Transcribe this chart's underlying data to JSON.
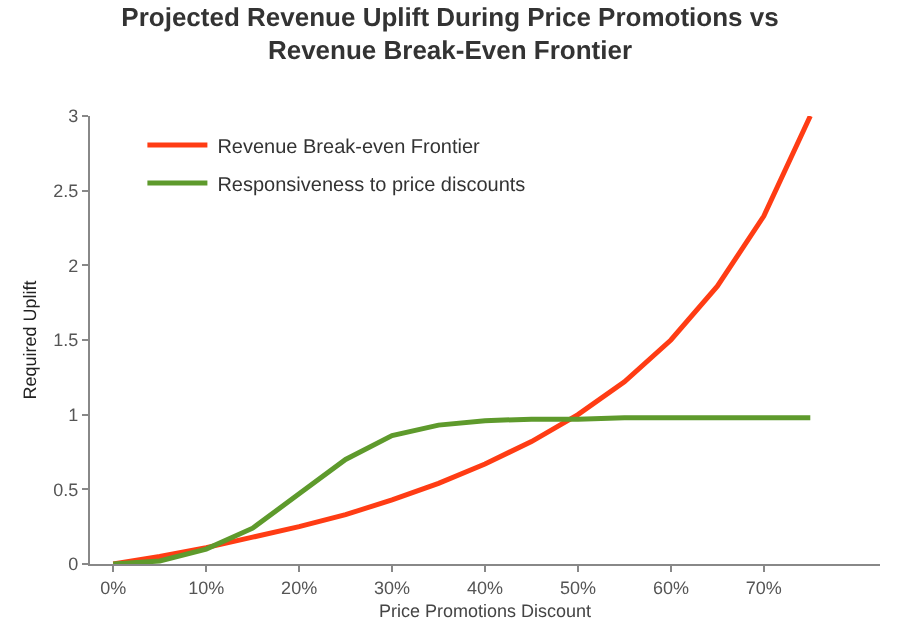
{
  "chart_data": {
    "type": "line",
    "title": "Projected Revenue Uplift During Price Promotions vs Revenue Break-Even Frontier",
    "xlabel": "Price Promotions Discount",
    "ylabel": "Required Uplift",
    "x": [
      0,
      5,
      10,
      15,
      20,
      25,
      30,
      35,
      40,
      45,
      50,
      55,
      60,
      65,
      70,
      75
    ],
    "series": [
      {
        "name": "Revenue Break-even Frontier",
        "color": "#ff3c14",
        "values": [
          0,
          0.05,
          0.11,
          0.18,
          0.25,
          0.33,
          0.43,
          0.54,
          0.67,
          0.82,
          1,
          1.22,
          1.5,
          1.86,
          2.33,
          3
        ]
      },
      {
        "name": "Responsiveness to price discounts",
        "color": "#5e9a2c",
        "values": [
          0,
          0.02,
          0.1,
          0.24,
          0.47,
          0.7,
          0.86,
          0.93,
          0.96,
          0.97,
          0.97,
          0.98,
          0.98,
          0.98,
          0.98,
          0.98
        ]
      }
    ],
    "xlim": [
      -2.5,
      82.5
    ],
    "xticks": [
      {
        "value": 0,
        "label": "0%"
      },
      {
        "value": 10,
        "label": "10%"
      },
      {
        "value": 20,
        "label": "20%"
      },
      {
        "value": 30,
        "label": "30%"
      },
      {
        "value": 40,
        "label": "40%"
      },
      {
        "value": 50,
        "label": "50%"
      },
      {
        "value": 60,
        "label": "60%"
      },
      {
        "value": 70,
        "label": "70%"
      }
    ],
    "ylim": [
      0,
      3
    ],
    "yticks": [
      0,
      0.5,
      1,
      1.5,
      2,
      2.5,
      3
    ],
    "legend": "top left",
    "marker": "none",
    "line_style": "solid"
  }
}
